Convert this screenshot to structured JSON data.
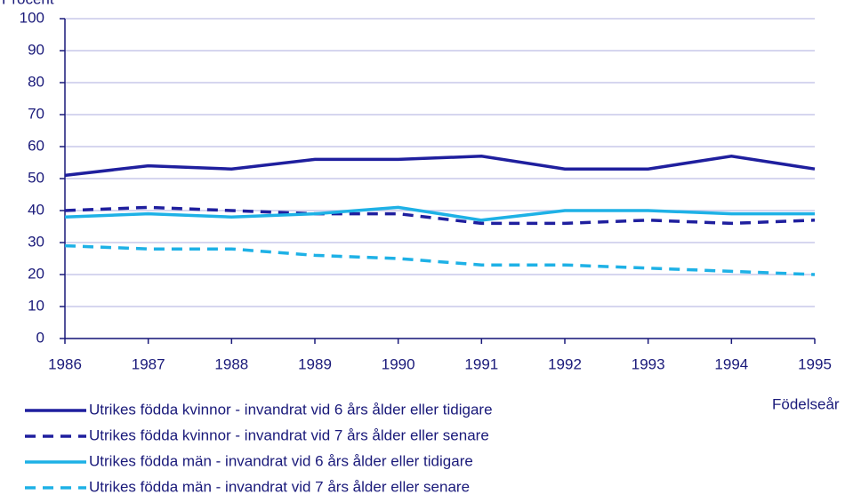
{
  "chart_data": {
    "type": "line",
    "y_label": "Procent",
    "x_label": "Födelseår",
    "x": [
      1986,
      1987,
      1988,
      1989,
      1990,
      1991,
      1992,
      1993,
      1994,
      1995
    ],
    "xlim": [
      1986,
      1995
    ],
    "xticks": [
      1986,
      1987,
      1988,
      1989,
      1990,
      1991,
      1992,
      1993,
      1994,
      1995
    ],
    "ylim": [
      0,
      100
    ],
    "yticks": [
      0,
      10,
      20,
      30,
      40,
      50,
      60,
      70,
      80,
      90,
      100
    ],
    "grid": true,
    "series": [
      {
        "name": "Utrikes födda kvinnor - invandrat vid 6 års ålder eller tidigare",
        "color": "#1f1f9e",
        "dashed": false,
        "values": [
          51,
          54,
          53,
          56,
          56,
          57,
          53,
          53,
          57,
          53
        ]
      },
      {
        "name": "Utrikes födda kvinnor - invandrat vid 7 års ålder eller senare",
        "color": "#1f1f9e",
        "dashed": true,
        "values": [
          40,
          41,
          40,
          39,
          39,
          36,
          36,
          37,
          36,
          37
        ]
      },
      {
        "name": "Utrikes födda män - invandrat vid 6 års ålder eller tidigare",
        "color": "#1eb1e6",
        "dashed": false,
        "values": [
          38,
          39,
          38,
          39,
          41,
          37,
          40,
          40,
          39,
          39
        ]
      },
      {
        "name": "Utrikes födda män - invandrat vid 7 års ålder eller senare",
        "color": "#1eb1e6",
        "dashed": true,
        "values": [
          29,
          28,
          28,
          26,
          25,
          23,
          23,
          22,
          21,
          20
        ]
      }
    ]
  }
}
